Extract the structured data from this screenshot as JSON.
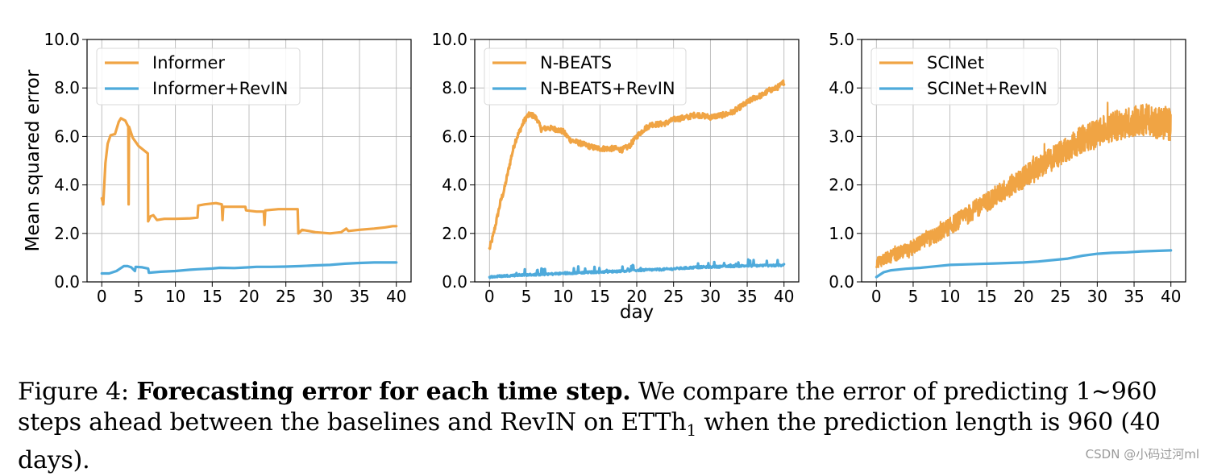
{
  "chart_data": [
    {
      "type": "line",
      "title": "",
      "xlabel": "",
      "ylabel": "Mean squared error",
      "xlim": [
        -2,
        42
      ],
      "ylim": [
        0,
        10
      ],
      "xticks": [
        "0",
        "5",
        "10",
        "15",
        "20",
        "25",
        "30",
        "35",
        "40"
      ],
      "yticks": [
        "0.0",
        "2.0",
        "4.0",
        "6.0",
        "8.0",
        "10.0"
      ],
      "grid": true,
      "legend_position": "top-left",
      "series": [
        {
          "name": "Informer",
          "color": "#f0a444",
          "points": [
            [
              0,
              3.45
            ],
            [
              0.2,
              3.2
            ],
            [
              0.5,
              4.9
            ],
            [
              0.8,
              5.7
            ],
            [
              1.2,
              6.05
            ],
            [
              1.8,
              6.1
            ],
            [
              2.3,
              6.6
            ],
            [
              2.6,
              6.75
            ],
            [
              3.2,
              6.65
            ],
            [
              3.6,
              6.4
            ],
            [
              3.65,
              3.2
            ],
            [
              3.7,
              6.4
            ],
            [
              4.2,
              5.95
            ],
            [
              5,
              5.6
            ],
            [
              6.25,
              5.3
            ],
            [
              6.3,
              2.5
            ],
            [
              6.6,
              2.7
            ],
            [
              7,
              2.75
            ],
            [
              7.5,
              2.55
            ],
            [
              8.5,
              2.6
            ],
            [
              10,
              2.6
            ],
            [
              12,
              2.62
            ],
            [
              13,
              2.65
            ],
            [
              13.1,
              3.15
            ],
            [
              14,
              3.2
            ],
            [
              15.5,
              3.25
            ],
            [
              16.3,
              3.2
            ],
            [
              16.4,
              2.55
            ],
            [
              16.5,
              3.1
            ],
            [
              18,
              3.1
            ],
            [
              19.5,
              3.1
            ],
            [
              19.6,
              2.95
            ],
            [
              21,
              2.9
            ],
            [
              22,
              2.9
            ],
            [
              22.1,
              2.35
            ],
            [
              22.2,
              2.95
            ],
            [
              24,
              3.0
            ],
            [
              26.6,
              3.0
            ],
            [
              26.7,
              2.0
            ],
            [
              27.2,
              2.15
            ],
            [
              29,
              2.05
            ],
            [
              31,
              2.0
            ],
            [
              32.5,
              2.05
            ],
            [
              33.2,
              2.2
            ],
            [
              33.5,
              2.1
            ],
            [
              35,
              2.15
            ],
            [
              37,
              2.2
            ],
            [
              38.5,
              2.25
            ],
            [
              39.5,
              2.3
            ],
            [
              40,
              2.3
            ]
          ]
        },
        {
          "name": "Informer+RevIN",
          "color": "#4eaadb",
          "points": [
            [
              0,
              0.35
            ],
            [
              1,
              0.35
            ],
            [
              2,
              0.45
            ],
            [
              2.5,
              0.55
            ],
            [
              3,
              0.65
            ],
            [
              3.5,
              0.65
            ],
            [
              4,
              0.6
            ],
            [
              4.5,
              0.45
            ],
            [
              4.6,
              0.62
            ],
            [
              5.5,
              0.6
            ],
            [
              6.3,
              0.55
            ],
            [
              6.4,
              0.38
            ],
            [
              8,
              0.42
            ],
            [
              10,
              0.45
            ],
            [
              12,
              0.5
            ],
            [
              13,
              0.52
            ],
            [
              15,
              0.55
            ],
            [
              16,
              0.58
            ],
            [
              18,
              0.57
            ],
            [
              20,
              0.6
            ],
            [
              21,
              0.62
            ],
            [
              23,
              0.62
            ],
            [
              25,
              0.63
            ],
            [
              27,
              0.65
            ],
            [
              29,
              0.68
            ],
            [
              31,
              0.7
            ],
            [
              33,
              0.75
            ],
            [
              35,
              0.78
            ],
            [
              37,
              0.8
            ],
            [
              40,
              0.8
            ]
          ]
        }
      ]
    },
    {
      "type": "line",
      "title": "",
      "xlabel": "day",
      "ylabel": "",
      "xlim": [
        -2,
        42
      ],
      "ylim": [
        0,
        10
      ],
      "xticks": [
        "0",
        "5",
        "10",
        "15",
        "20",
        "25",
        "30",
        "35",
        "40"
      ],
      "yticks": [
        "0.0",
        "2.0",
        "4.0",
        "6.0",
        "8.0",
        "10.0"
      ],
      "grid": true,
      "legend_position": "top-left",
      "series": [
        {
          "name": "N-BEATS",
          "color": "#f0a444",
          "points": [
            [
              0,
              1.35
            ],
            [
              0.5,
              1.9
            ],
            [
              1,
              2.6
            ],
            [
              1.5,
              3.3
            ],
            [
              2,
              3.8
            ],
            [
              2.5,
              4.5
            ],
            [
              3,
              5.2
            ],
            [
              3.5,
              5.8
            ],
            [
              4,
              6.15
            ],
            [
              4.5,
              6.5
            ],
            [
              5,
              6.8
            ],
            [
              5.5,
              6.9
            ],
            [
              6,
              6.85
            ],
            [
              6.5,
              6.7
            ],
            [
              7,
              6.3
            ],
            [
              8,
              6.35
            ],
            [
              9,
              6.3
            ],
            [
              10,
              6.2
            ],
            [
              11,
              5.85
            ],
            [
              12,
              5.75
            ],
            [
              13,
              5.65
            ],
            [
              14,
              5.55
            ],
            [
              15,
              5.5
            ],
            [
              16,
              5.5
            ],
            [
              17,
              5.5
            ],
            [
              18,
              5.45
            ],
            [
              19,
              5.6
            ],
            [
              20,
              6.0
            ],
            [
              21,
              6.3
            ],
            [
              22,
              6.5
            ],
            [
              23,
              6.5
            ],
            [
              24,
              6.55
            ],
            [
              25,
              6.7
            ],
            [
              26,
              6.75
            ],
            [
              27,
              6.8
            ],
            [
              28,
              6.9
            ],
            [
              29,
              6.85
            ],
            [
              30,
              6.8
            ],
            [
              31,
              6.85
            ],
            [
              32,
              6.9
            ],
            [
              33,
              7.0
            ],
            [
              34,
              7.2
            ],
            [
              35,
              7.4
            ],
            [
              36,
              7.6
            ],
            [
              37,
              7.7
            ],
            [
              38,
              7.9
            ],
            [
              39,
              8.0
            ],
            [
              39.5,
              8.1
            ],
            [
              40,
              8.25
            ]
          ]
        },
        {
          "name": "N-BEATS+RevIN",
          "color": "#4eaadb",
          "points": [
            [
              0,
              0.2
            ],
            [
              2,
              0.25
            ],
            [
              4,
              0.28
            ],
            [
              6,
              0.3
            ],
            [
              8,
              0.32
            ],
            [
              10,
              0.35
            ],
            [
              12,
              0.38
            ],
            [
              14,
              0.4
            ],
            [
              16,
              0.42
            ],
            [
              18,
              0.45
            ],
            [
              20,
              0.48
            ],
            [
              22,
              0.5
            ],
            [
              24,
              0.52
            ],
            [
              26,
              0.56
            ],
            [
              28,
              0.6
            ],
            [
              30,
              0.62
            ],
            [
              32,
              0.64
            ],
            [
              34,
              0.66
            ],
            [
              36,
              0.67
            ],
            [
              38,
              0.68
            ],
            [
              40,
              0.68
            ]
          ]
        }
      ]
    },
    {
      "type": "line",
      "title": "",
      "xlabel": "",
      "ylabel": "",
      "xlim": [
        -2,
        42
      ],
      "ylim": [
        0,
        5
      ],
      "xticks": [
        "0",
        "5",
        "10",
        "15",
        "20",
        "25",
        "30",
        "35",
        "40"
      ],
      "yticks": [
        "0.0",
        "1.0",
        "2.0",
        "3.0",
        "4.0",
        "5.0"
      ],
      "grid": true,
      "legend_position": "top-left",
      "series": [
        {
          "name": "SCINet",
          "color": "#f0a444",
          "points": [
            [
              0,
              0.4
            ],
            [
              4,
              0.65
            ],
            [
              8,
              0.95
            ],
            [
              12,
              1.35
            ],
            [
              16,
              1.75
            ],
            [
              20,
              2.15
            ],
            [
              24,
              2.55
            ],
            [
              28,
              2.95
            ],
            [
              32,
              3.2
            ],
            [
              36,
              3.35
            ],
            [
              40,
              3.25
            ]
          ],
          "noise_amplitude": 0.35
        },
        {
          "name": "SCINet+RevIN",
          "color": "#4eaadb",
          "points": [
            [
              0,
              0.1
            ],
            [
              0.5,
              0.15
            ],
            [
              1,
              0.2
            ],
            [
              2,
              0.24
            ],
            [
              4,
              0.27
            ],
            [
              6,
              0.29
            ],
            [
              8,
              0.32
            ],
            [
              10,
              0.35
            ],
            [
              12,
              0.36
            ],
            [
              14,
              0.37
            ],
            [
              16,
              0.38
            ],
            [
              18,
              0.39
            ],
            [
              20,
              0.4
            ],
            [
              22,
              0.42
            ],
            [
              24,
              0.45
            ],
            [
              26,
              0.48
            ],
            [
              28,
              0.54
            ],
            [
              30,
              0.58
            ],
            [
              32,
              0.6
            ],
            [
              34,
              0.61
            ],
            [
              36,
              0.63
            ],
            [
              38,
              0.64
            ],
            [
              40,
              0.65
            ]
          ]
        }
      ]
    }
  ],
  "caption": {
    "prefix": "Figure 4: ",
    "bold": "Forecasting error for each time step.",
    "text_1": " We compare the error of predicting 1∼960 steps ahead between the baselines and RevIN on ETTh",
    "subscript": "1",
    "text_2": " when the prediction length is 960 (40 days)."
  },
  "watermark": "CSDN @小码过河ml"
}
